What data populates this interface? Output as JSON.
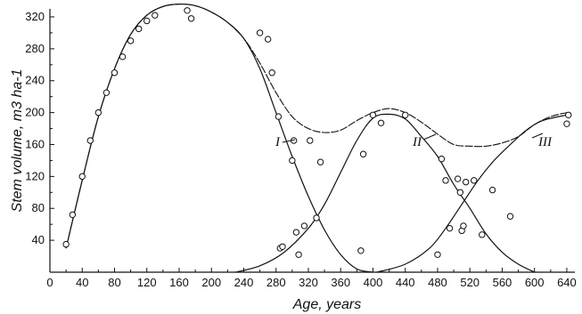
{
  "chart_data": {
    "type": "scatter",
    "xlabel": "Age, years",
    "ylabel": "Stem volume, m3 ha-1",
    "xlim": [
      0,
      650
    ],
    "ylim": [
      0,
      330
    ],
    "xticks": [
      "0",
      "40",
      "80",
      "120",
      "160",
      "200",
      "240",
      "280",
      "320",
      "360",
      "400",
      "440",
      "480",
      "520",
      "560",
      "600",
      "640"
    ],
    "yticks": [
      "40",
      "80",
      "120",
      "160",
      "200",
      "240",
      "280",
      "320"
    ],
    "grid": false,
    "series": [
      {
        "name": "I",
        "style": "solid",
        "x": [
          20,
          40,
          60,
          80,
          100,
          120,
          140,
          160,
          180,
          200,
          220,
          240,
          260,
          280,
          300,
          320,
          340,
          360,
          380,
          400
        ],
        "y": [
          30,
          115,
          195,
          255,
          298,
          322,
          333,
          336,
          334,
          326,
          313,
          293,
          255,
          200,
          145,
          95,
          53,
          22,
          4,
          0
        ]
      },
      {
        "name": "II",
        "style": "solid",
        "x": [
          230,
          260,
          290,
          320,
          340,
          360,
          380,
          400,
          420,
          440,
          460,
          480,
          500,
          520,
          540,
          560,
          580,
          600
        ],
        "y": [
          0,
          8,
          25,
          55,
          85,
          125,
          165,
          193,
          198,
          192,
          170,
          145,
          110,
          80,
          48,
          25,
          10,
          0
        ]
      },
      {
        "name": "III",
        "style": "solid",
        "x": [
          405,
          440,
          470,
          490,
          510,
          530,
          550,
          570,
          590,
          610,
          640
        ],
        "y": [
          0,
          10,
          30,
          55,
          85,
          115,
          140,
          160,
          178,
          190,
          197
        ]
      },
      {
        "name": "",
        "style": "total",
        "x": [
          20,
          40,
          60,
          80,
          100,
          120,
          140,
          160,
          180,
          200,
          220,
          240,
          260,
          280,
          300,
          320,
          340,
          360,
          380,
          400,
          420,
          440,
          460,
          480,
          500,
          520,
          540,
          560,
          580,
          600,
          620,
          640
        ],
        "y": [
          30,
          115,
          195,
          255,
          298,
          322,
          333,
          336,
          334,
          326,
          313,
          293,
          262,
          225,
          195,
          180,
          175,
          178,
          190,
          200,
          205,
          200,
          188,
          173,
          160,
          158,
          158,
          162,
          170,
          185,
          195,
          200
        ]
      },
      {
        "name": "observations",
        "style": "points",
        "x": [
          20,
          28,
          40,
          50,
          60,
          70,
          80,
          90,
          100,
          110,
          120,
          130,
          170,
          175,
          260,
          270,
          275,
          283,
          285,
          288,
          300,
          302,
          305,
          308,
          315,
          322,
          330,
          335,
          385,
          388,
          400,
          410,
          440,
          480,
          485,
          490,
          495,
          505,
          508,
          510,
          512,
          515,
          525,
          535,
          548,
          570,
          640,
          642
        ],
        "y": [
          35,
          72,
          120,
          165,
          200,
          225,
          250,
          270,
          290,
          305,
          315,
          322,
          328,
          318,
          300,
          292,
          250,
          195,
          30,
          32,
          140,
          165,
          50,
          22,
          58,
          165,
          68,
          138,
          27,
          148,
          197,
          187,
          197,
          22,
          142,
          115,
          55,
          117,
          100,
          52,
          58,
          113,
          115,
          47,
          103,
          70,
          186,
          197
        ]
      }
    ],
    "curve_labels": [
      "I",
      "II",
      "III"
    ]
  }
}
